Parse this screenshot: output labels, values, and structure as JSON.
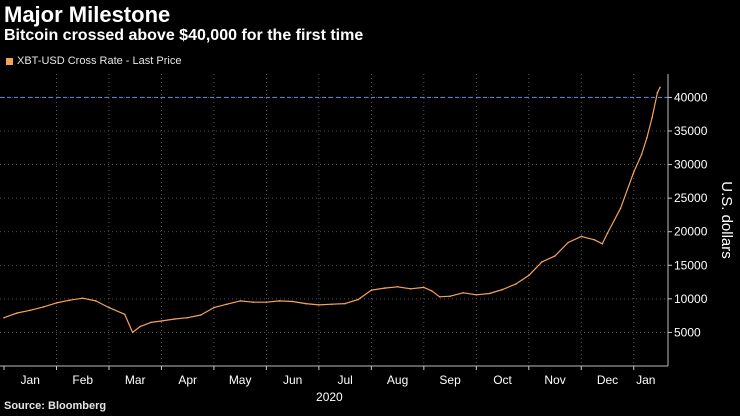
{
  "header": {
    "title": "Major Milestone",
    "subtitle": "Bitcoin crossed above $40,000 for the first time"
  },
  "legend": {
    "label": "XBT-USD Cross Rate - Last Price",
    "color": "#f5a25d"
  },
  "footer": {
    "source": "Source: Bloomberg"
  },
  "colors": {
    "background": "#000000",
    "grid": "#666666",
    "series": "#f5a25d",
    "reference_line": "#4f7fd6"
  },
  "chart_data": {
    "type": "line",
    "title": "Major Milestone",
    "subtitle": "Bitcoin crossed above $40,000 for the first time",
    "series_name": "XBT-USD Cross Rate - Last Price",
    "xlabel": "2020",
    "ylabel": "U.S. dollars",
    "y_axis_side": "right",
    "ylim": [
      0,
      42000
    ],
    "yticks": [
      5000,
      10000,
      15000,
      20000,
      25000,
      30000,
      35000,
      40000
    ],
    "ytick_labels": [
      "5000",
      "10000",
      "15000",
      "20000",
      "25000",
      "30000",
      "35000",
      "40000"
    ],
    "xticks": [
      "Jan",
      "Feb",
      "Mar",
      "Apr",
      "May",
      "Jun",
      "Jul",
      "Aug",
      "Sep",
      "Oct",
      "Nov",
      "Dec",
      "Jan"
    ],
    "year_label": "2020",
    "reference_line": {
      "y": 40000,
      "style": "dashed"
    },
    "grid": true,
    "points": [
      [
        0.0,
        7200
      ],
      [
        0.25,
        7900
      ],
      [
        0.5,
        8300
      ],
      [
        0.75,
        8800
      ],
      [
        1.0,
        9400
      ],
      [
        1.25,
        9800
      ],
      [
        1.5,
        10100
      ],
      [
        1.75,
        9700
      ],
      [
        2.0,
        8700
      ],
      [
        2.3,
        7700
      ],
      [
        2.45,
        5000
      ],
      [
        2.6,
        5900
      ],
      [
        2.8,
        6500
      ],
      [
        3.0,
        6700
      ],
      [
        3.25,
        7000
      ],
      [
        3.5,
        7200
      ],
      [
        3.75,
        7600
      ],
      [
        4.0,
        8700
      ],
      [
        4.25,
        9200
      ],
      [
        4.5,
        9700
      ],
      [
        4.75,
        9500
      ],
      [
        5.0,
        9500
      ],
      [
        5.25,
        9700
      ],
      [
        5.5,
        9600
      ],
      [
        5.75,
        9300
      ],
      [
        6.0,
        9100
      ],
      [
        6.25,
        9200
      ],
      [
        6.5,
        9300
      ],
      [
        6.75,
        9900
      ],
      [
        7.0,
        11300
      ],
      [
        7.25,
        11600
      ],
      [
        7.5,
        11800
      ],
      [
        7.75,
        11500
      ],
      [
        8.0,
        11700
      ],
      [
        8.15,
        11200
      ],
      [
        8.3,
        10300
      ],
      [
        8.5,
        10400
      ],
      [
        8.75,
        10900
      ],
      [
        9.0,
        10600
      ],
      [
        9.25,
        10800
      ],
      [
        9.5,
        11400
      ],
      [
        9.75,
        12200
      ],
      [
        10.0,
        13500
      ],
      [
        10.25,
        15500
      ],
      [
        10.5,
        16400
      ],
      [
        10.75,
        18400
      ],
      [
        11.0,
        19300
      ],
      [
        11.25,
        18800
      ],
      [
        11.4,
        18200
      ],
      [
        11.5,
        19800
      ],
      [
        11.75,
        23500
      ],
      [
        12.0,
        28900
      ],
      [
        12.15,
        31500
      ],
      [
        12.25,
        34000
      ],
      [
        12.35,
        37000
      ],
      [
        12.45,
        40700
      ],
      [
        12.5,
        41500
      ]
    ]
  }
}
